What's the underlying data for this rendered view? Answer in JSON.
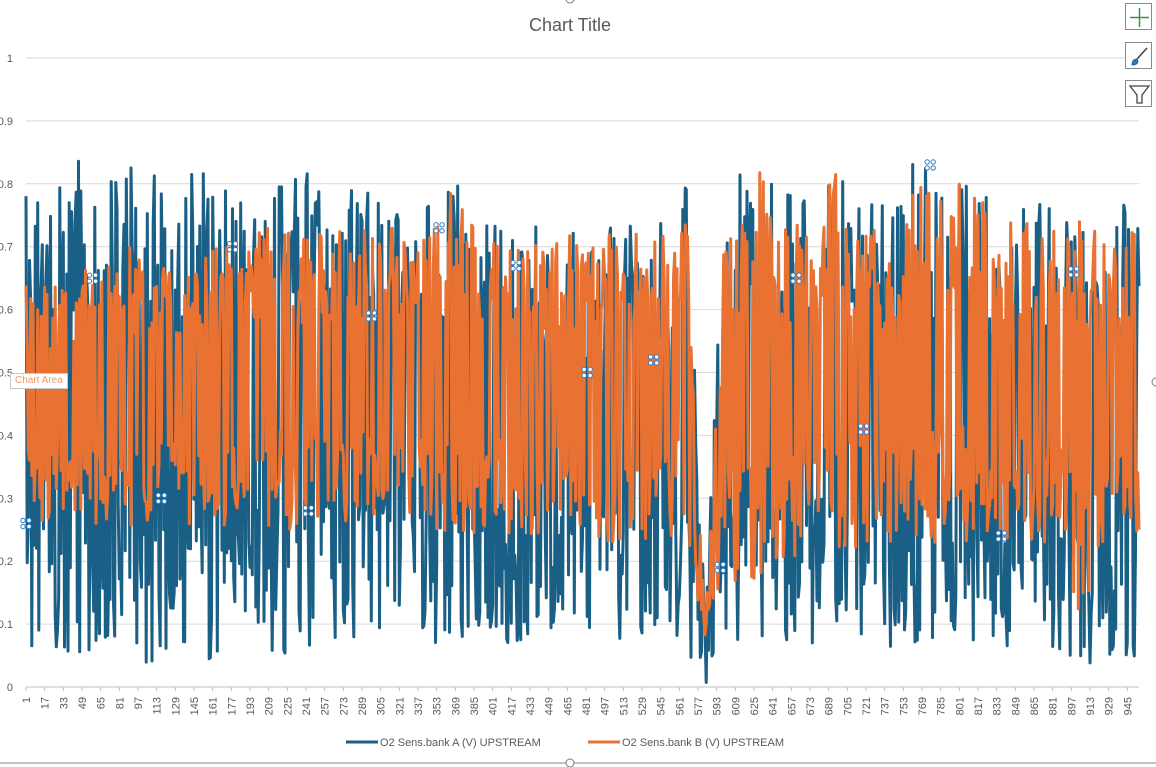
{
  "chart_data": {
    "type": "line",
    "title": "Chart Title",
    "xlabel": "",
    "ylabel": "",
    "ylim": [
      0,
      1
    ],
    "yticks": [
      "0",
      "0.1",
      "0.2",
      "0.3",
      "0.4",
      "0.5",
      "0.6",
      "0.7",
      "0.8",
      "0.9",
      "1"
    ],
    "xticks": [
      "1",
      "17",
      "33",
      "49",
      "65",
      "81",
      "97",
      "113",
      "129",
      "145",
      "161",
      "177",
      "193",
      "209",
      "225",
      "241",
      "257",
      "273",
      "289",
      "305",
      "321",
      "337",
      "353",
      "369",
      "385",
      "401",
      "417",
      "433",
      "449",
      "465",
      "481",
      "497",
      "513",
      "529",
      "545",
      "561",
      "577",
      "593",
      "609",
      "625",
      "641",
      "657",
      "673",
      "689",
      "705",
      "721",
      "737",
      "753",
      "769",
      "785",
      "801",
      "817",
      "833",
      "849",
      "865",
      "881",
      "897",
      "913",
      "929",
      "945"
    ],
    "xrange": [
      1,
      955
    ],
    "grid": true,
    "legend_position": "bottom",
    "series": [
      {
        "name": "O2 Sens.bank A (V) UPSTREAM",
        "color": "#1a5f85",
        "envelope": {
          "high": [
            0.8,
            0.8,
            0.8,
            0.85,
            0.84,
            0.81,
            0.85,
            0.81,
            0.81,
            0.84,
            0.81,
            0.82,
            0.81,
            0.8,
            0.81,
            0.83,
            0.88,
            0.8,
            0.8,
            0.77,
            0.77,
            0.77,
            0.77,
            0.85,
            0.74,
            0.74,
            0.76,
            0.74,
            0.74,
            0.73,
            0.74,
            0.74,
            0.74,
            0.74,
            0.74,
            0.85,
            0.1,
            0.77,
            0.84,
            0.89,
            0.8,
            0.77,
            0.8,
            0.83,
            0.78,
            0.77,
            0.77,
            0.86,
            0.83,
            0.8,
            0.8,
            0.78,
            0.77,
            0.77,
            0.77,
            0.77,
            0.77,
            0.77,
            0.77,
            0.76
          ],
          "low": [
            0.05,
            0.05,
            0.04,
            0.05,
            0.04,
            0.05,
            0.03,
            0.04,
            0.04,
            0.04,
            0.03,
            0.04,
            0.04,
            0.04,
            0.05,
            0.05,
            0.05,
            0.06,
            0.07,
            0.07,
            0.06,
            0.07,
            0.07,
            0.07,
            0.07,
            0.07,
            0.07,
            0.06,
            0.06,
            0.07,
            0.07,
            0.07,
            0.07,
            0.07,
            0.07,
            0.05,
            0.0,
            0.06,
            0.06,
            0.05,
            0.06,
            0.06,
            0.06,
            0.06,
            0.06,
            0.06,
            0.06,
            0.06,
            0.05,
            0.06,
            0.06,
            0.06,
            0.06,
            0.06,
            0.06,
            0.06,
            0.0,
            0.05,
            0.04,
            0.05
          ]
        }
      },
      {
        "name": "O2 Sens.bank B (V) UPSTREAM",
        "color": "#e97132",
        "envelope": {
          "high": [
            0.66,
            0.66,
            0.66,
            0.67,
            0.68,
            0.7,
            0.7,
            0.7,
            0.7,
            0.7,
            0.71,
            0.72,
            0.73,
            0.74,
            0.72,
            0.72,
            0.73,
            0.73,
            0.73,
            0.73,
            0.73,
            0.74,
            0.74,
            0.83,
            0.73,
            0.73,
            0.73,
            0.72,
            0.72,
            0.72,
            0.72,
            0.72,
            0.72,
            0.72,
            0.72,
            0.81,
            0.08,
            0.73,
            0.78,
            0.83,
            0.75,
            0.75,
            0.77,
            0.83,
            0.73,
            0.73,
            0.72,
            0.85,
            0.83,
            0.81,
            0.81,
            0.77,
            0.74,
            0.74,
            0.74,
            0.74,
            0.74,
            0.74,
            0.74,
            0.73
          ],
          "low": [
            0.26,
            0.26,
            0.26,
            0.26,
            0.25,
            0.25,
            0.25,
            0.25,
            0.25,
            0.25,
            0.25,
            0.25,
            0.25,
            0.25,
            0.25,
            0.25,
            0.25,
            0.25,
            0.25,
            0.24,
            0.24,
            0.24,
            0.24,
            0.24,
            0.24,
            0.24,
            0.24,
            0.24,
            0.24,
            0.23,
            0.23,
            0.23,
            0.23,
            0.23,
            0.23,
            0.23,
            0.08,
            0.18,
            0.16,
            0.15,
            0.19,
            0.21,
            0.21,
            0.22,
            0.22,
            0.23,
            0.23,
            0.23,
            0.23,
            0.23,
            0.23,
            0.23,
            0.23,
            0.23,
            0.23,
            0.23,
            0.06,
            0.22,
            0.22,
            0.23
          ]
        }
      }
    ],
    "annotations": [
      "Chart Area"
    ]
  },
  "icons": {
    "add": "plus-icon",
    "style": "brush-icon",
    "filter": "funnel-icon"
  },
  "tooltip": {
    "label": "Chart Area"
  }
}
